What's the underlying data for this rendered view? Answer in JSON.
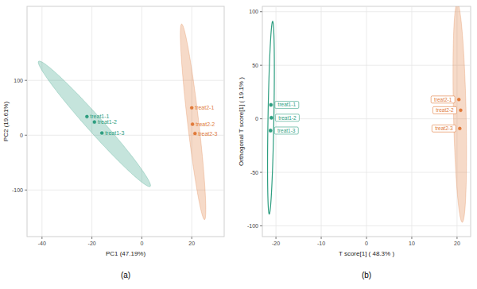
{
  "chart_data": [
    {
      "type": "scatter",
      "caption": "(a)",
      "x_label": "PC1 (47.19%)",
      "y_label": "PC2 (19.61%)",
      "xlim": [
        -46,
        33
      ],
      "ylim": [
        -185,
        235
      ],
      "xticks": [
        -40,
        -20,
        0,
        20
      ],
      "yticks": [
        -100,
        0,
        100
      ],
      "grid": true,
      "series": [
        {
          "color": "#2e9e80",
          "x": [
            -22,
            -19,
            -16
          ],
          "values": [
            34,
            24,
            4
          ],
          "labels": [
            "treat1-1",
            "treat1-2",
            "treat1-3"
          ]
        },
        {
          "color": "#e07a3a",
          "x": [
            20,
            20.3,
            21.3
          ],
          "values": [
            50,
            20,
            3
          ],
          "labels": [
            "treat2-1",
            "treat2-2",
            "treat2-3"
          ]
        }
      ]
    },
    {
      "type": "scatter",
      "caption": "(b)",
      "x_label": "T score[1] ( 48.3% )",
      "y_label": "Orthogonal T score[1] ( 19.1% )",
      "xlim": [
        -23,
        23
      ],
      "ylim": [
        -110,
        105
      ],
      "xticks": [
        -20,
        -10,
        0,
        10,
        20
      ],
      "yticks": [
        -100,
        -50,
        0,
        50,
        100
      ],
      "grid": true,
      "series": [
        {
          "color": "#2e9e80",
          "x": [
            -21.1,
            -21.0,
            -21.2
          ],
          "values": [
            13,
            1,
            -11
          ],
          "labels": [
            "treat1-1",
            "treat1-2",
            "treat1-3"
          ]
        },
        {
          "color": "#e07a3a",
          "x": [
            20.4,
            20.8,
            20.6
          ],
          "values": [
            18,
            8,
            -9
          ],
          "labels": [
            "treat2-1",
            "treat2-2",
            "treat2-3"
          ]
        }
      ]
    }
  ]
}
